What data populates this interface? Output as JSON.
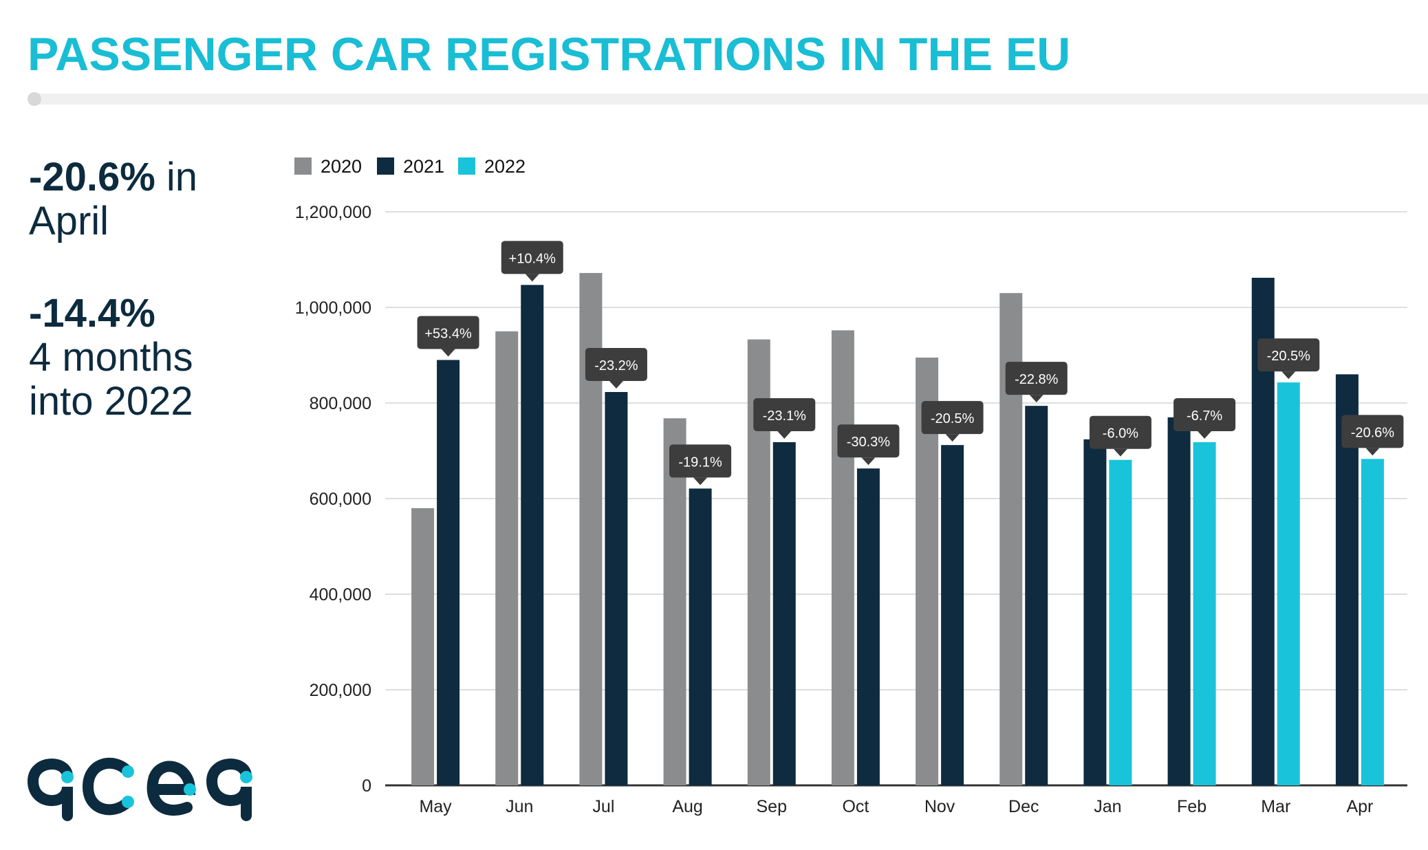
{
  "title": "PASSENGER CAR REGISTRATIONS IN THE EU",
  "stats": {
    "april_change": "-20.6%",
    "april_suffix": " in",
    "april_label": "April",
    "ytd_change": "-14.4%",
    "ytd_line1": "4 months",
    "ytd_line2": "into 2022"
  },
  "logo_text": "acea",
  "colors": {
    "2020": "#8b8c8e",
    "2021": "#0e2b3f",
    "2022": "#19c3da",
    "title": "#19bdd4",
    "label_bg": "#3d3d3d"
  },
  "chart_data": {
    "type": "bar",
    "categories": [
      "May",
      "Jun",
      "Jul",
      "Aug",
      "Sep",
      "Oct",
      "Nov",
      "Dec",
      "Jan",
      "Feb",
      "Mar",
      "Apr"
    ],
    "series": [
      {
        "name": "2020",
        "values": [
          580000,
          950000,
          1072000,
          768000,
          933000,
          952000,
          895000,
          1030000,
          null,
          null,
          null,
          null
        ]
      },
      {
        "name": "2021",
        "values": [
          890000,
          1047000,
          823000,
          621000,
          718000,
          663000,
          712000,
          794000,
          724000,
          770000,
          1062000,
          860000
        ]
      },
      {
        "name": "2022",
        "values": [
          null,
          null,
          null,
          null,
          null,
          null,
          null,
          null,
          681000,
          718000,
          843000,
          683000
        ]
      }
    ],
    "change_labels": [
      "+53.4%",
      "+10.4%",
      "-23.2%",
      "-19.1%",
      "-23.1%",
      "-30.3%",
      "-20.5%",
      "-22.8%",
      "-6.0%",
      "-6.7%",
      "-20.5%",
      "-20.6%"
    ],
    "yticks": [
      "0",
      "200,000",
      "400,000",
      "600,000",
      "800,000",
      "1,000,000",
      "1,200,000"
    ],
    "ylim": [
      0,
      1200000
    ],
    "legend": [
      "2020",
      "2021",
      "2022"
    ],
    "legend_position": "top-left",
    "grid": true
  }
}
